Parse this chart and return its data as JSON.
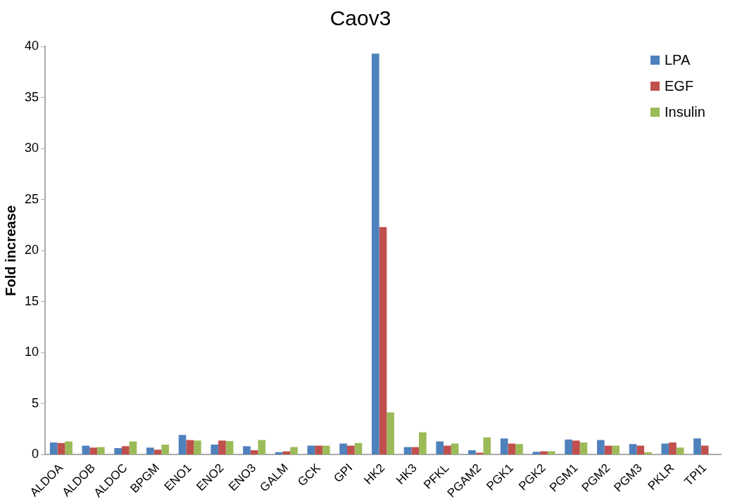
{
  "chart_data": {
    "type": "bar",
    "title": "Caov3",
    "ylabel": "Fold increase",
    "categories": [
      "ALDOA",
      "ALDOB",
      "ALDOC",
      "BPGM",
      "ENO1",
      "ENO2",
      "ENO3",
      "GALM",
      "GCK",
      "GPI",
      "HK2",
      "HK3",
      "PFKL",
      "PGAM2",
      "PGK1",
      "PGK2",
      "PGM1",
      "PGM2",
      "PGM3",
      "PKLR",
      "TPI1"
    ],
    "series": [
      {
        "name": "LPA",
        "color": "#4f81bd",
        "values": [
          1.2,
          0.9,
          0.65,
          0.7,
          1.95,
          1.0,
          0.85,
          0.25,
          0.9,
          1.1,
          39.3,
          0.75,
          1.3,
          0.45,
          1.6,
          0.3,
          1.5,
          1.45,
          1.05,
          1.1,
          1.6
        ]
      },
      {
        "name": "EGF",
        "color": "#c0504d",
        "values": [
          1.15,
          0.7,
          0.85,
          0.5,
          1.45,
          1.4,
          0.45,
          0.35,
          0.9,
          0.9,
          22.3,
          0.75,
          0.9,
          0.2,
          1.1,
          0.35,
          1.4,
          0.9,
          0.9,
          1.2,
          0.9
        ]
      },
      {
        "name": "Insulin",
        "color": "#9bbb59",
        "values": [
          1.3,
          0.75,
          1.3,
          1.0,
          1.4,
          1.35,
          1.45,
          0.75,
          0.9,
          1.15,
          4.15,
          2.2,
          1.1,
          1.7,
          1.05,
          0.35,
          1.2,
          0.9,
          0.25,
          0.7,
          null
        ]
      }
    ],
    "ylim": [
      0,
      40
    ],
    "yticks": [
      0,
      5,
      10,
      15,
      20,
      25,
      30,
      35,
      40
    ],
    "grid": false,
    "legend": "top right"
  }
}
